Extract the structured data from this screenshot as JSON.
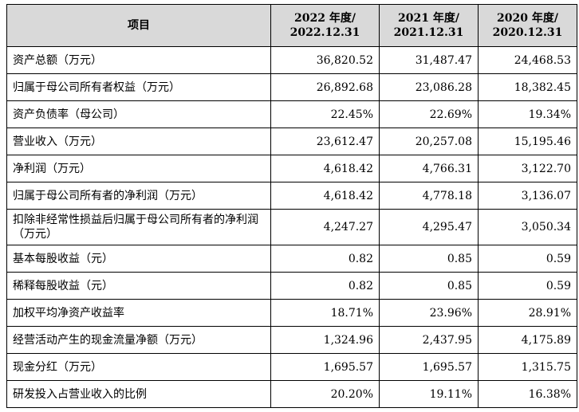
{
  "table": {
    "headers": {
      "item": "项目",
      "y2022": [
        "2022 年度/",
        "2022.12.31"
      ],
      "y2021": [
        "2021 年度/",
        "2021.12.31"
      ],
      "y2020": [
        "2020 年度/",
        "2020.12.31"
      ]
    },
    "rows": [
      {
        "label": "资产总额（万元）",
        "v2022": "36,820.52",
        "v2021": "31,487.47",
        "v2020": "24,468.53"
      },
      {
        "label": "归属于母公司所有者权益（万元）",
        "v2022": "26,892.68",
        "v2021": "23,086.28",
        "v2020": "18,382.45"
      },
      {
        "label": "资产负债率（母公司）",
        "v2022": "22.45%",
        "v2021": "22.69%",
        "v2020": "19.34%"
      },
      {
        "label": "营业收入（万元）",
        "v2022": "23,612.47",
        "v2021": "20,257.08",
        "v2020": "15,195.46"
      },
      {
        "label": "净利润（万元）",
        "v2022": "4,618.42",
        "v2021": "4,766.31",
        "v2020": "3,122.70"
      },
      {
        "label": "归属于母公司所有者的净利润（万元）",
        "v2022": "4,618.42",
        "v2021": "4,778.18",
        "v2020": "3,136.07"
      },
      {
        "label": "扣除非经常性损益后归属于母公司所有者的净利润（万元）",
        "v2022": "4,247.27",
        "v2021": "4,295.47",
        "v2020": "3,050.34"
      },
      {
        "label": "基本每股收益（元）",
        "v2022": "0.82",
        "v2021": "0.85",
        "v2020": "0.59"
      },
      {
        "label": "稀释每股收益（元）",
        "v2022": "0.82",
        "v2021": "0.85",
        "v2020": "0.59"
      },
      {
        "label": "加权平均净资产收益率",
        "v2022": "18.71%",
        "v2021": "23.96%",
        "v2020": "28.91%"
      },
      {
        "label": "经营活动产生的现金流量净额（万元）",
        "v2022": "1,324.96",
        "v2021": "2,437.95",
        "v2020": "4,175.89"
      },
      {
        "label": "现金分红（万元）",
        "v2022": "1,695.57",
        "v2021": "1,695.57",
        "v2020": "1,315.75"
      },
      {
        "label": "研发投入占营业收入的比例",
        "v2022": "20.20%",
        "v2021": "19.11%",
        "v2020": "16.38%"
      }
    ]
  }
}
